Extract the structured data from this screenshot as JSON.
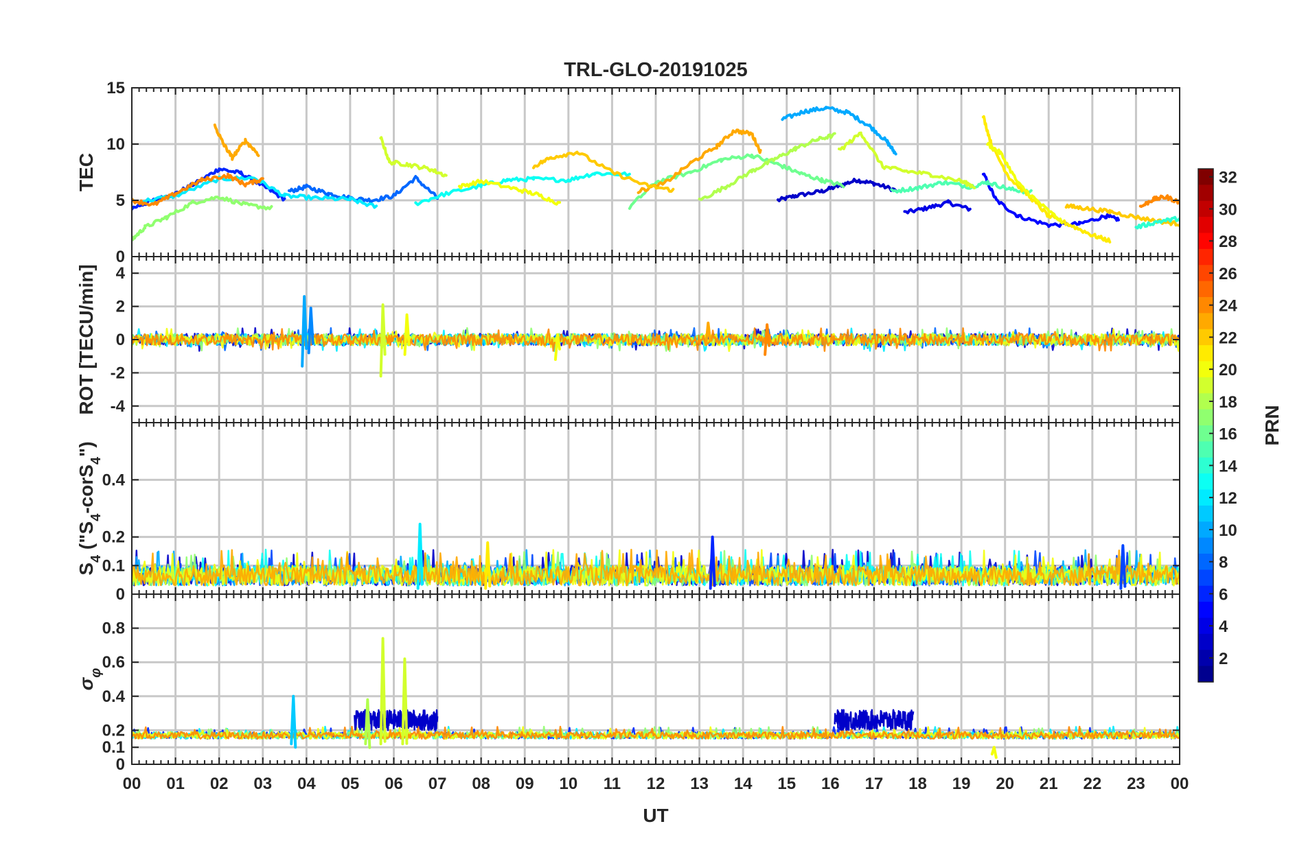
{
  "chart_data": {
    "type": "line",
    "title": "TRL-GLO-20191025",
    "xlabel": "UT",
    "x_ticks": [
      "00",
      "01",
      "02",
      "03",
      "04",
      "05",
      "06",
      "07",
      "08",
      "09",
      "10",
      "11",
      "12",
      "13",
      "14",
      "15",
      "16",
      "17",
      "18",
      "19",
      "20",
      "21",
      "22",
      "23",
      "00"
    ],
    "xlim": [
      0,
      24
    ],
    "colorbar": {
      "label": "PRN",
      "range": [
        1,
        32
      ],
      "ticks": [
        "2",
        "4",
        "6",
        "8",
        "10",
        "12",
        "14",
        "16",
        "18",
        "20",
        "22",
        "24",
        "26",
        "28",
        "30",
        "32"
      ],
      "colormap": [
        "#00008f",
        "#0000ff",
        "#0080ff",
        "#00ffff",
        "#80ff80",
        "#ffff00",
        "#ff8000",
        "#ff0000",
        "#800000"
      ]
    },
    "panels": [
      {
        "id": "tec",
        "ylabel": "TEC",
        "ylim": [
          0,
          15
        ],
        "y_ticks": [
          0,
          5,
          10,
          15
        ],
        "y_tick_labels": [
          "0",
          "5",
          "10",
          "15"
        ],
        "series": [
          {
            "prn": 3,
            "x": [
              14.8,
              15.2,
              15.8,
              16.2,
              16.6,
              17.0,
              17.5
            ],
            "y": [
              5.0,
              5.4,
              5.8,
              6.3,
              6.8,
              6.5,
              5.9
            ]
          },
          {
            "prn": 4,
            "x": [
              17.7,
              18.2,
              18.7,
              19.2
            ],
            "y": [
              3.9,
              4.3,
              4.8,
              4.2
            ]
          },
          {
            "prn": 6,
            "x": [
              0.0,
              0.5,
              1.0,
              1.5,
              2.0,
              2.5,
              3.0,
              3.5
            ],
            "y": [
              4.3,
              5.0,
              5.6,
              6.6,
              7.8,
              7.4,
              6.3,
              5.1
            ]
          },
          {
            "prn": 5,
            "x": [
              19.5,
              19.8,
              20.3,
              21.0,
              21.7,
              22.3,
              22.6
            ],
            "y": [
              7.4,
              5.0,
              3.6,
              2.8,
              2.9,
              3.6,
              3.3
            ]
          },
          {
            "prn": 8,
            "x": [
              3.6,
              4.0,
              4.5,
              5.0,
              5.5,
              6.0,
              6.5,
              7.0
            ],
            "y": [
              5.8,
              6.2,
              5.6,
              5.2,
              5.0,
              5.4,
              7.0,
              5.2
            ]
          },
          {
            "prn": 10,
            "x": [
              14.9,
              15.4,
              15.9,
              16.4,
              16.9,
              17.3,
              17.5
            ],
            "y": [
              12.2,
              12.9,
              13.2,
              12.8,
              11.6,
              10.2,
              9.1
            ]
          },
          {
            "prn": 12,
            "x": [
              0.2,
              1.0,
              2.0,
              2.8,
              3.5,
              4.2,
              5.0,
              5.6
            ],
            "y": [
              4.9,
              5.4,
              6.9,
              7.0,
              5.4,
              5.2,
              5.1,
              4.4
            ]
          },
          {
            "prn": 13,
            "x": [
              6.5,
              7.2,
              8.0,
              8.6,
              9.2,
              10.0,
              10.6,
              11.4
            ],
            "y": [
              4.7,
              5.6,
              6.3,
              6.8,
              6.9,
              6.8,
              7.4,
              7.3
            ]
          },
          {
            "prn": 15,
            "x": [
              17.4,
              18.0,
              18.6,
              19.2,
              19.6,
              20.1,
              20.6
            ],
            "y": [
              5.8,
              6.1,
              6.6,
              6.2,
              6.6,
              6.0,
              5.7
            ]
          },
          {
            "prn": 17,
            "x": [
              0.0,
              0.3,
              0.8,
              1.4,
              2.0,
              2.6,
              3.2
            ],
            "y": [
              1.5,
              2.6,
              3.5,
              4.8,
              5.3,
              4.6,
              4.3
            ]
          },
          {
            "prn": 16,
            "x": [
              11.4,
              12.0,
              12.8,
              13.5,
              14.2,
              14.8,
              15.3,
              15.8,
              16.3
            ],
            "y": [
              4.4,
              6.6,
              7.5,
              8.6,
              9.0,
              8.2,
              7.4,
              6.8,
              6.3
            ]
          },
          {
            "prn": 18,
            "x": [
              13.0,
              13.6,
              14.2,
              14.7,
              15.2,
              15.7,
              16.1
            ],
            "y": [
              5.0,
              6.2,
              7.6,
              8.6,
              9.6,
              10.4,
              10.8
            ]
          },
          {
            "prn": 19,
            "x": [
              5.7,
              5.9,
              6.3,
              6.8,
              7.2
            ],
            "y": [
              10.6,
              8.4,
              8.2,
              7.8,
              7.2
            ]
          },
          {
            "prn": 20,
            "x": [
              7.5,
              8.0,
              8.8,
              9.3,
              9.8
            ],
            "y": [
              6.2,
              6.7,
              6.0,
              5.5,
              4.7
            ]
          },
          {
            "prn": 21,
            "x": [
              19.5,
              19.7,
              20.1,
              20.6,
              21.0,
              21.5,
              22.0,
              22.4
            ],
            "y": [
              12.5,
              9.8,
              7.0,
              5.2,
              3.6,
              2.8,
              1.9,
              1.4
            ]
          },
          {
            "prn": 20,
            "x": [
              19.6,
              19.9,
              20.3,
              20.8,
              21.3
            ],
            "y": [
              10.0,
              9.2,
              6.5,
              4.7,
              3.1
            ]
          },
          {
            "prn": 19,
            "x": [
              16.2,
              16.7,
              17.2,
              17.7,
              18.3,
              19.0,
              19.3
            ],
            "y": [
              9.4,
              11.0,
              8.0,
              7.6,
              7.3,
              6.7,
              6.2
            ]
          },
          {
            "prn": 22,
            "x": [
              21.4,
              21.8,
              22.4,
              23.0,
              23.6,
              24.0
            ],
            "y": [
              4.5,
              4.3,
              4.0,
              3.5,
              3.1,
              2.9
            ]
          },
          {
            "prn": 23,
            "x": [
              11.6,
              12.2,
              12.8,
              13.4,
              13.8,
              14.2,
              14.4
            ],
            "y": [
              5.8,
              6.5,
              8.3,
              9.8,
              11.2,
              10.9,
              9.3
            ]
          },
          {
            "prn": 24,
            "x": [
              0.0,
              0.5,
              1.0,
              1.6,
              2.2,
              2.6,
              3.0
            ],
            "y": [
              5.0,
              4.6,
              5.6,
              6.8,
              7.2,
              6.4,
              6.9
            ]
          },
          {
            "prn": 22,
            "x": [
              9.2,
              9.6,
              10.2,
              11.0,
              11.8,
              12.4
            ],
            "y": [
              8.0,
              8.8,
              9.3,
              7.5,
              6.3,
              5.9
            ]
          },
          {
            "prn": 23,
            "x": [
              1.9,
              2.1,
              2.3,
              2.6,
              2.9
            ],
            "y": [
              11.6,
              10.0,
              8.8,
              10.3,
              9.1
            ]
          },
          {
            "prn": 24,
            "x": [
              23.1,
              23.4,
              23.7,
              24.0
            ],
            "y": [
              4.4,
              5.1,
              5.3,
              4.8
            ]
          },
          {
            "prn": 14,
            "x": [
              23.0,
              23.5,
              24.0
            ],
            "y": [
              2.6,
              3.1,
              3.4
            ]
          }
        ]
      },
      {
        "id": "rot",
        "ylabel": "ROT [TECU/min]",
        "ylim": [
          -5,
          5
        ],
        "y_ticks": [
          -4,
          -2,
          0,
          2,
          4
        ],
        "y_tick_labels": [
          "-4",
          "-2",
          "0",
          "2",
          "4"
        ],
        "noise": {
          "baseline": 0,
          "amplitude": 0.35,
          "prns": [
            3,
            8,
            12,
            17,
            20,
            24
          ]
        },
        "spikes": [
          {
            "x": 3.95,
            "ymin": -1.6,
            "ymax": 2.6,
            "prn": 10
          },
          {
            "x": 4.1,
            "ymin": -0.8,
            "ymax": 1.9,
            "prn": 9
          },
          {
            "x": 5.75,
            "ymin": -2.2,
            "ymax": 2.1,
            "prn": 19
          },
          {
            "x": 6.3,
            "ymin": -0.9,
            "ymax": 1.5,
            "prn": 20
          },
          {
            "x": 9.75,
            "ymin": -1.2,
            "ymax": 0.3,
            "prn": 20
          },
          {
            "x": 13.2,
            "ymin": -0.3,
            "ymax": 1.0,
            "prn": 23
          },
          {
            "x": 14.55,
            "ymin": -0.9,
            "ymax": 0.9,
            "prn": 24
          }
        ]
      },
      {
        "id": "s4",
        "ylabel": "S4 (\"S4-corS4\")",
        "ylabel_parts": {
          "main": "S",
          "sub": "4",
          "open": " (\"S",
          "sub2": "4",
          "mid": "-corS",
          "sub3": "4",
          "close": "\")"
        },
        "ylim": [
          0,
          0.6
        ],
        "y_ticks": [
          0,
          0.1,
          0.2,
          0.4
        ],
        "y_tick_labels": [
          "0",
          "0.1",
          "0.2",
          "0.4"
        ],
        "noise": {
          "baseline": 0.03,
          "amplitude": 0.07,
          "prns": [
            3,
            7,
            10,
            13,
            17,
            20,
            23
          ]
        },
        "spikes": [
          {
            "x": 6.6,
            "ymin": 0.02,
            "ymax": 0.245,
            "prn": 12
          },
          {
            "x": 13.3,
            "ymin": 0.02,
            "ymax": 0.2,
            "prn": 6
          },
          {
            "x": 8.15,
            "ymin": 0.02,
            "ymax": 0.18,
            "prn": 21
          },
          {
            "x": 22.7,
            "ymin": 0.02,
            "ymax": 0.17,
            "prn": 7
          }
        ]
      },
      {
        "id": "sigma",
        "ylabel": "σφ",
        "ylabel_parts": {
          "main": "σ",
          "sub": "φ"
        },
        "ylim": [
          0,
          1
        ],
        "y_ticks": [
          0,
          0.1,
          0.2,
          0.4,
          0.6,
          0.8
        ],
        "y_tick_labels": [
          "0",
          "0.1",
          "0.2",
          "0.4",
          "0.6",
          "0.8"
        ],
        "noise": {
          "baseline": 0.15,
          "amplitude": 0.04,
          "prns": [
            6,
            12,
            17,
            20,
            24
          ]
        },
        "bursts": [
          {
            "x0": 5.1,
            "x1": 7.0,
            "baseline": 0.2,
            "amplitude": 0.12,
            "prn": 3
          },
          {
            "x0": 16.1,
            "x1": 17.9,
            "baseline": 0.2,
            "amplitude": 0.12,
            "prn": 3
          }
        ],
        "spikes": [
          {
            "x": 5.75,
            "ymin": 0.12,
            "ymax": 0.74,
            "prn": 19
          },
          {
            "x": 6.25,
            "ymin": 0.12,
            "ymax": 0.62,
            "prn": 19
          },
          {
            "x": 3.7,
            "ymin": 0.12,
            "ymax": 0.4,
            "prn": 11
          },
          {
            "x": 5.4,
            "ymin": 0.12,
            "ymax": 0.38,
            "prn": 18
          },
          {
            "x": 19.75,
            "ymin": 0.06,
            "ymax": 0.1,
            "prn": 20
          }
        ]
      }
    ]
  }
}
